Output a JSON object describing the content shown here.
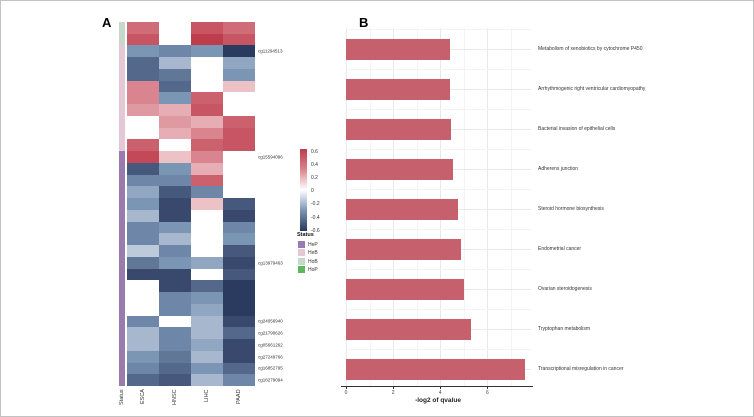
{
  "figure": {
    "panel_a_label": "A",
    "panel_b_label": "B"
  },
  "chart_data": [
    {
      "type": "heatmap",
      "panel": "A",
      "columns": [
        "ESCA",
        "HNSC",
        "LIHC",
        "PAAD"
      ],
      "status_axis_label": "Status",
      "value_scale": {
        "min": -0.6,
        "mid": 0,
        "max": 0.6,
        "max_color": "#BE3D4D",
        "pos_mid_color": "#D9848E",
        "mid_color": "#FFFFFF",
        "neg_mid_color": "#7B95B5",
        "min_color": "#2B3A5F",
        "na_color": "#FFFFFF"
      },
      "colorbar_ticks": [
        "0.6",
        "0.4",
        "0.2",
        "0",
        "-0.2",
        "-0.4",
        "-0.6"
      ],
      "status_legend": {
        "title": "Status",
        "items": [
          {
            "label": "HeP",
            "color": "#9A7BAE"
          },
          {
            "label": "HeB",
            "color": "#E5C8D5"
          },
          {
            "label": "HoB",
            "color": "#C8D8C8"
          },
          {
            "label": "HoP",
            "color": "#5CB85C"
          }
        ]
      },
      "rows": [
        {
          "label": "",
          "status": "HoB",
          "values": [
            0.4,
            null,
            0.5,
            0.4
          ]
        },
        {
          "label": "",
          "status": "HoB",
          "values": [
            0.5,
            null,
            0.6,
            0.5
          ]
        },
        {
          "label": "cg11294513",
          "status": "HeB",
          "values": [
            -0.3,
            -0.35,
            -0.3,
            -0.6
          ]
        },
        {
          "label": "",
          "status": "HeB",
          "values": [
            -0.45,
            -0.2,
            null,
            -0.25
          ]
        },
        {
          "label": "",
          "status": "HeB",
          "values": [
            -0.45,
            -0.4,
            null,
            -0.3
          ]
        },
        {
          "label": "",
          "status": "HeB",
          "values": [
            0.3,
            -0.45,
            null,
            0.15
          ]
        },
        {
          "label": "",
          "status": "HeB",
          "values": [
            0.3,
            -0.3,
            0.45,
            null
          ]
        },
        {
          "label": "",
          "status": "HeB",
          "values": [
            0.25,
            0.2,
            0.5,
            null
          ]
        },
        {
          "label": "",
          "status": "HeB",
          "values": [
            null,
            0.25,
            0.2,
            0.45
          ]
        },
        {
          "label": "",
          "status": "HeB",
          "values": [
            null,
            0.2,
            0.3,
            0.5
          ]
        },
        {
          "label": "",
          "status": "HeB",
          "values": [
            0.45,
            null,
            0.45,
            0.5
          ]
        },
        {
          "label": "cg15594096",
          "status": "HeP",
          "values": [
            0.55,
            0.15,
            0.3,
            null
          ]
        },
        {
          "label": "",
          "status": "HeP",
          "values": [
            -0.5,
            -0.3,
            0.2,
            null
          ]
        },
        {
          "label": "",
          "status": "HeP",
          "values": [
            -0.35,
            -0.35,
            0.45,
            null
          ]
        },
        {
          "label": "",
          "status": "HeP",
          "values": [
            -0.25,
            -0.5,
            -0.35,
            null
          ]
        },
        {
          "label": "",
          "status": "HeP",
          "values": [
            -0.3,
            -0.55,
            0.15,
            -0.5
          ]
        },
        {
          "label": "",
          "status": "HeP",
          "values": [
            -0.2,
            -0.55,
            null,
            -0.55
          ]
        },
        {
          "label": "",
          "status": "HeP",
          "values": [
            -0.35,
            -0.3,
            null,
            -0.35
          ]
        },
        {
          "label": "",
          "status": "HeP",
          "values": [
            -0.35,
            -0.2,
            null,
            -0.3
          ]
        },
        {
          "label": "",
          "status": "HeP",
          "values": [
            -0.15,
            -0.35,
            null,
            -0.5
          ]
        },
        {
          "label": "cg13979463",
          "status": "HeP",
          "values": [
            -0.4,
            -0.3,
            -0.25,
            -0.55
          ]
        },
        {
          "label": "",
          "status": "HeP",
          "values": [
            -0.55,
            -0.55,
            null,
            -0.5
          ]
        },
        {
          "label": "",
          "status": "HeP",
          "values": [
            null,
            -0.55,
            -0.45,
            -0.6
          ]
        },
        {
          "label": "",
          "status": "HeP",
          "values": [
            null,
            -0.35,
            -0.3,
            -0.6
          ]
        },
        {
          "label": "",
          "status": "HeP",
          "values": [
            null,
            -0.35,
            -0.25,
            -0.6
          ]
        },
        {
          "label": "cg24056940",
          "status": "HeP",
          "values": [
            -0.35,
            null,
            -0.2,
            -0.55
          ]
        },
        {
          "label": "cg21790626",
          "status": "HeP",
          "values": [
            -0.2,
            -0.35,
            -0.2,
            -0.45
          ]
        },
        {
          "label": "cg05661262",
          "status": "HeP",
          "values": [
            -0.2,
            -0.35,
            -0.25,
            -0.55
          ]
        },
        {
          "label": "cg27249766",
          "status": "HeP",
          "values": [
            -0.3,
            -0.4,
            -0.2,
            -0.55
          ]
        },
        {
          "label": "cg16852795",
          "status": "HeP",
          "values": [
            -0.35,
            -0.45,
            -0.3,
            -0.45
          ]
        },
        {
          "label": "cg18279094",
          "status": "HeP",
          "values": [
            -0.45,
            -0.5,
            -0.2,
            -0.35
          ]
        }
      ]
    },
    {
      "type": "bar",
      "panel": "B",
      "orientation": "horizontal",
      "categories": [
        "Metabolism of xenobiotics by cytochrome P450",
        "Arrhythmogenic right ventricular cardiomyopathy",
        "Bacterial invasion of epithelial cells",
        "Adherens junction",
        "Steroid hormone biosynthesis",
        "Endometrial cancer",
        "Ovarian steroidogenesis",
        "Tryptophan metabolism",
        "Transcriptional misregulation in cancer"
      ],
      "values": [
        4.4,
        4.4,
        4.45,
        4.55,
        4.75,
        4.9,
        5.0,
        5.3,
        7.6
      ],
      "xlabel": "-log2 of qvalue",
      "xticks": [
        "0",
        "2",
        "4",
        "6"
      ],
      "xtick_values": [
        0,
        2,
        4,
        6
      ],
      "xlim": [
        0,
        7.85
      ],
      "bar_color": "#C7606D",
      "grid": true,
      "label_position": "right"
    }
  ]
}
